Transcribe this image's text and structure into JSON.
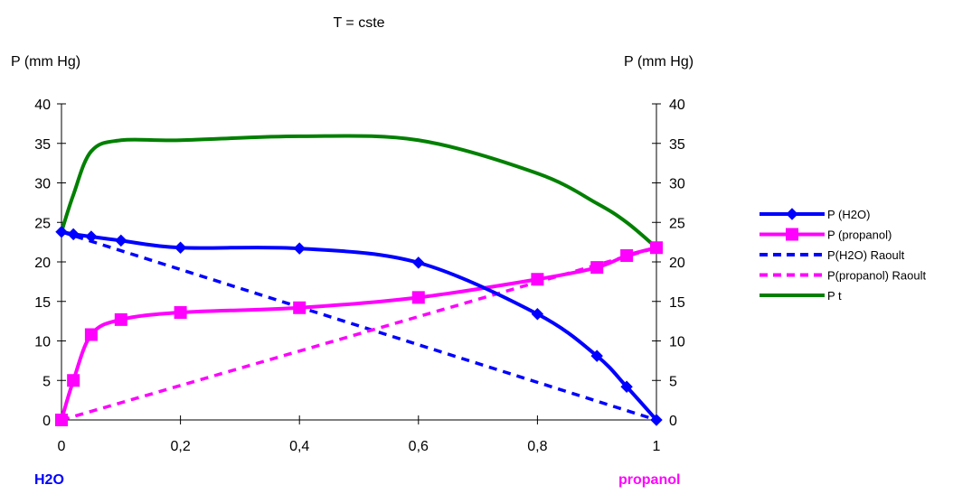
{
  "chart_data": {
    "type": "line",
    "title": "T = cste",
    "ylabel_left": "P (mm Hg)",
    "ylabel_right": "P (mm Hg)",
    "component_left": "H2O",
    "component_right": "propanol",
    "component_left_color": "#0000ff",
    "component_right_color": "#ff00ff",
    "xlim": [
      0,
      1
    ],
    "ylim": [
      0,
      40
    ],
    "x_ticks": [
      "0",
      "0,2",
      "0,4",
      "0,6",
      "0,8",
      "1"
    ],
    "y_ticks": [
      "0",
      "5",
      "10",
      "15",
      "20",
      "25",
      "30",
      "35",
      "40"
    ],
    "grid": false,
    "legend_position": "right",
    "series": [
      {
        "name": "P (H2O)",
        "color": "#0000ff",
        "style": "solid",
        "marker": "diamond",
        "x": [
          0,
          0.02,
          0.05,
          0.1,
          0.2,
          0.4,
          0.6,
          0.8,
          0.9,
          0.95,
          1
        ],
        "y": [
          23.8,
          23.5,
          23.2,
          22.7,
          21.8,
          21.7,
          19.9,
          13.4,
          8.1,
          4.2,
          0
        ]
      },
      {
        "name": "P (propanol)",
        "color": "#ff00ff",
        "style": "solid",
        "marker": "square",
        "x": [
          0,
          0.02,
          0.05,
          0.1,
          0.2,
          0.4,
          0.6,
          0.8,
          0.9,
          0.95,
          1
        ],
        "y": [
          0,
          5.0,
          10.8,
          12.7,
          13.6,
          14.2,
          15.5,
          17.8,
          19.3,
          20.8,
          21.8
        ]
      },
      {
        "name": "P(H2O) Raoult",
        "color": "#0000ff",
        "style": "dashed",
        "marker": "none",
        "x": [
          0,
          1
        ],
        "y": [
          23.8,
          0
        ]
      },
      {
        "name": "P(propanol) Raoult",
        "color": "#ff00ff",
        "style": "dashed",
        "marker": "none",
        "x": [
          0,
          1
        ],
        "y": [
          0,
          21.8
        ]
      },
      {
        "name": "P t",
        "color": "#008000",
        "style": "solid",
        "marker": "none",
        "x": [
          0,
          0.02,
          0.05,
          0.1,
          0.2,
          0.4,
          0.6,
          0.8,
          0.9,
          0.95,
          1
        ],
        "y": [
          23.8,
          28.5,
          34.0,
          35.4,
          35.4,
          35.9,
          35.4,
          31.2,
          27.4,
          25.0,
          21.8
        ]
      }
    ]
  }
}
